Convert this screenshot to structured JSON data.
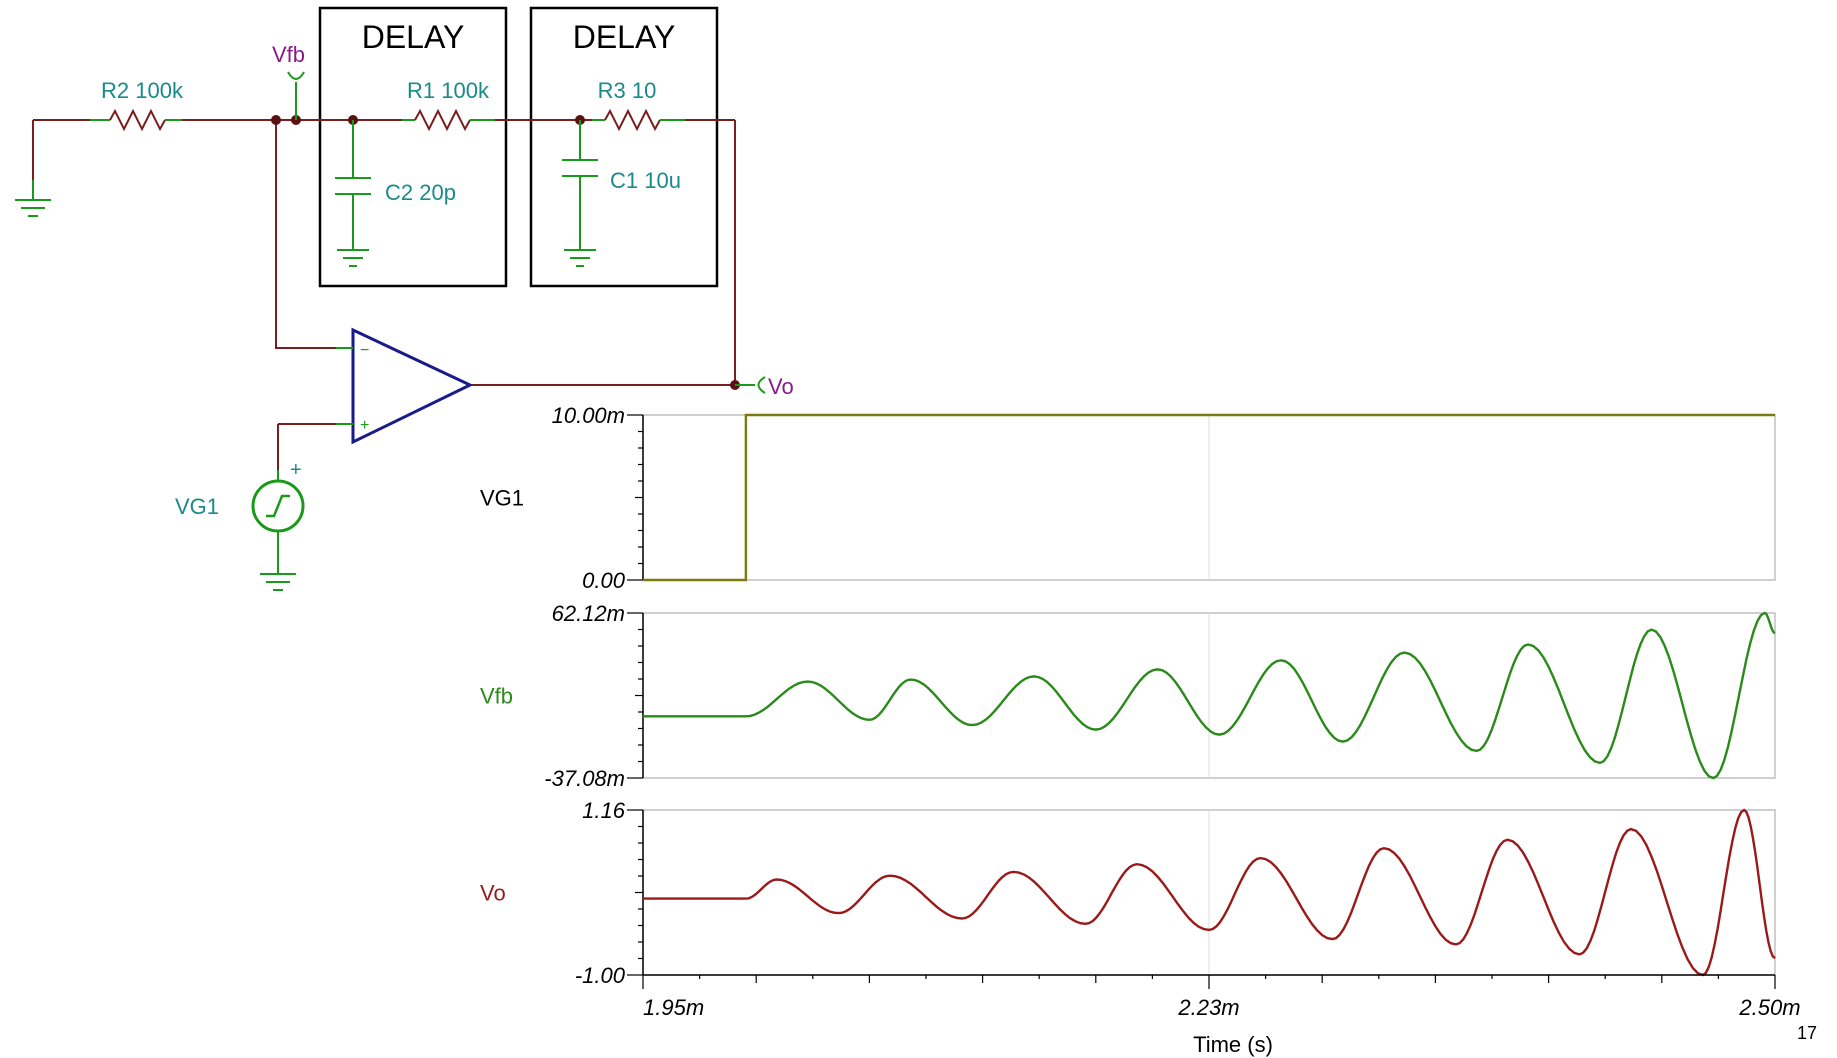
{
  "schematic": {
    "delay_box_1": "DELAY",
    "delay_box_2": "DELAY",
    "r2": "R2 100k",
    "r1": "R1 100k",
    "r3": "R3 10",
    "c2": "C2 20p",
    "c1": "C1 10u",
    "vfb_probe": "Vfb",
    "vo_probe": "Vo",
    "vg1": "VG1",
    "opamp_minus": "−",
    "opamp_plus": "+",
    "source_plus": "+"
  },
  "colors": {
    "wire": "#7a1f1f",
    "component": "#1a9a1a",
    "component_text": "#1a8a8a",
    "probe_text": "#8a1a8a",
    "opamp": "#1a1a8a",
    "vg1_trace": "#7a7a10",
    "vfb_trace": "#2a8a1a",
    "vo_trace": "#9a1a1a"
  },
  "chart_data": {
    "type": "line",
    "xlabel": "Time (s)",
    "x_ticks": [
      "1.95m",
      "2.23m",
      "2.50m"
    ],
    "x_range": [
      1.95,
      2.5
    ],
    "x_unit": "ms",
    "panels": [
      {
        "name": "VG1",
        "y_ticks": [
          "10.00m",
          "0.00"
        ],
        "ylim": [
          0,
          10
        ],
        "signal": "step",
        "step_time": 2.0,
        "low": 0,
        "high": 10
      },
      {
        "name": "Vfb",
        "y_ticks": [
          "62.12m",
          "-37.08m"
        ],
        "ylim": [
          -37.08,
          62.12
        ],
        "signal": "growing_oscillation",
        "start": 2.0,
        "baseline": 0,
        "peaks": [
          [
            2.03,
            20.9
          ],
          [
            2.08,
            22.1
          ],
          [
            2.14,
            24.0
          ],
          [
            2.2,
            28.2
          ],
          [
            2.26,
            33.7
          ],
          [
            2.32,
            38.3
          ],
          [
            2.38,
            43.2
          ],
          [
            2.44,
            52.1
          ],
          [
            2.495,
            62.1
          ]
        ],
        "troughs": [
          [
            2.06,
            -2.1
          ],
          [
            2.11,
            -5.3
          ],
          [
            2.17,
            -8.0
          ],
          [
            2.23,
            -11.0
          ],
          [
            2.29,
            -15.2
          ],
          [
            2.355,
            -20.8
          ],
          [
            2.415,
            -28.0
          ],
          [
            2.47,
            -37.1
          ]
        ],
        "end": [
          2.5,
          50.0
        ]
      },
      {
        "name": "Vo",
        "y_ticks": [
          "1.16",
          "-1.00"
        ],
        "ylim": [
          -1.0,
          1.16
        ],
        "signal": "growing_oscillation",
        "start": 2.0,
        "baseline": 0,
        "peaks": [
          [
            2.015,
            0.25
          ],
          [
            2.07,
            0.3
          ],
          [
            2.13,
            0.35
          ],
          [
            2.19,
            0.45
          ],
          [
            2.25,
            0.53
          ],
          [
            2.31,
            0.66
          ],
          [
            2.37,
            0.77
          ],
          [
            2.43,
            0.91
          ],
          [
            2.485,
            1.16
          ]
        ],
        "troughs": [
          [
            2.045,
            -0.19
          ],
          [
            2.105,
            -0.26
          ],
          [
            2.165,
            -0.33
          ],
          [
            2.225,
            -0.41
          ],
          [
            2.285,
            -0.53
          ],
          [
            2.345,
            -0.6
          ],
          [
            2.405,
            -0.73
          ],
          [
            2.465,
            -1.0
          ]
        ],
        "end": [
          2.5,
          -0.78
        ]
      }
    ]
  },
  "page_number": "17"
}
